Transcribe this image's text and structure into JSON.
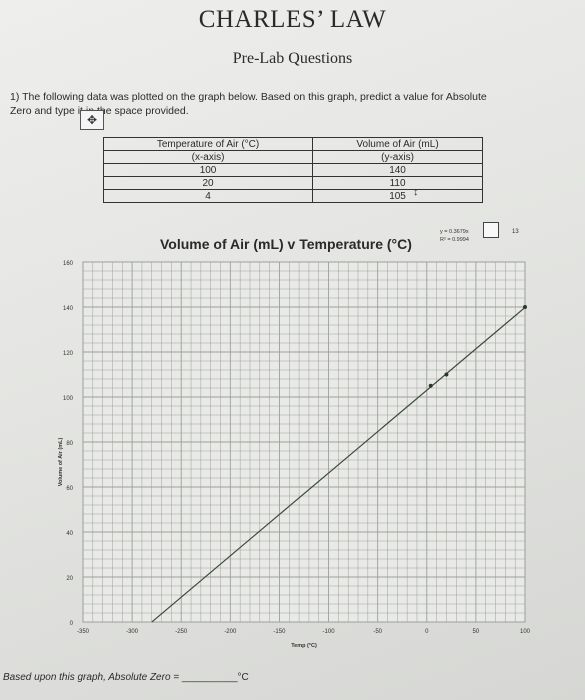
{
  "header": {
    "title": "CHARLES’ LAW",
    "subtitle": "Pre-Lab Questions"
  },
  "question": {
    "number": "1)",
    "text_line1": "The following data was plotted on the graph below. Based on this graph, predict a value for Absolute",
    "text_line2": "Zero and type it in the space provided."
  },
  "table": {
    "headers": [
      "Temperature of Air (°C)",
      "Volume of Air (mL)"
    ],
    "subheaders": [
      "(x-axis)",
      "(y-axis)"
    ],
    "rows": [
      [
        "100",
        "140"
      ],
      [
        "20",
        "110"
      ],
      [
        "4",
        "105"
      ]
    ]
  },
  "trendline": {
    "equation": "y = 0.3679x",
    "r_squared": "R² = 0.9994",
    "partial_number": "13"
  },
  "icons": {
    "move": "move-arrows-icon",
    "row_resize": "row-resize-icon"
  },
  "chart_data": {
    "type": "scatter",
    "title": "Volume of Air (mL) v Temperature (°C)",
    "xlabel": "Temp (°C)",
    "ylabel": "Volume of Air (mL)",
    "xlim": [
      -350,
      100
    ],
    "ylim": [
      0,
      160
    ],
    "xticks": [
      -350,
      -300,
      -250,
      -200,
      -150,
      -100,
      -50,
      0,
      50,
      100
    ],
    "yticks": [
      0,
      20,
      40,
      60,
      80,
      100,
      120,
      140,
      160
    ],
    "grid": true,
    "series": [
      {
        "x": [
          100,
          20,
          4
        ],
        "y": [
          140,
          110,
          105
        ]
      }
    ],
    "trendline": {
      "slope": 0.3679,
      "intercept": 103,
      "x_start": -280,
      "x_end": 100
    },
    "colors": {
      "line": "#3a4a3a",
      "grid": "#9aa09a",
      "point": "#2a3a2a"
    }
  },
  "answer_line": {
    "prefix": "Based upon this graph, Absolute Zero = ",
    "blank": "__________",
    "unit": "°C"
  }
}
